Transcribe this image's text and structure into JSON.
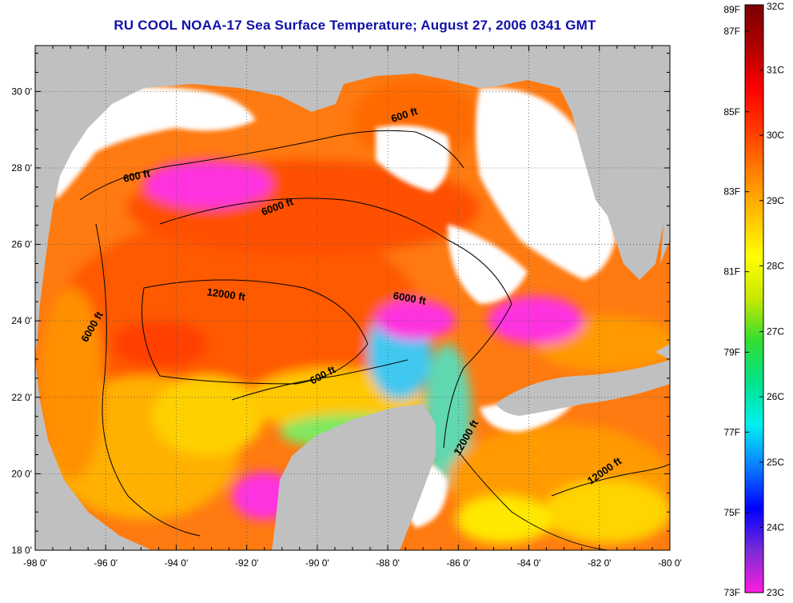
{
  "title": "RU COOL  NOAA-17  Sea Surface Temperature;  August 27, 2006 0341 GMT",
  "axes": {
    "x_ticks": [
      {
        "lon": -98,
        "label": "-98 0'"
      },
      {
        "lon": -96,
        "label": "-96 0'"
      },
      {
        "lon": -94,
        "label": "-94 0'"
      },
      {
        "lon": -92,
        "label": "-92 0'"
      },
      {
        "lon": -90,
        "label": "-90 0'"
      },
      {
        "lon": -88,
        "label": "-88 0'"
      },
      {
        "lon": -86,
        "label": "-86 0'"
      },
      {
        "lon": -84,
        "label": "-84 0'"
      },
      {
        "lon": -82,
        "label": "-82 0'"
      },
      {
        "lon": -80,
        "label": "-80 0'"
      }
    ],
    "y_ticks": [
      {
        "lat": 30,
        "label": "30 0'"
      },
      {
        "lat": 28,
        "label": "28 0'"
      },
      {
        "lat": 26,
        "label": "26 0'"
      },
      {
        "lat": 24,
        "label": "24 0'"
      },
      {
        "lat": 22,
        "label": "22 0'"
      },
      {
        "lat": 20,
        "label": "20 0'"
      },
      {
        "lat": 18,
        "label": "18 0'"
      }
    ],
    "lon_range": [
      -98,
      -80
    ],
    "lat_range": [
      18,
      31.2
    ],
    "grid": true
  },
  "contour_labels": [
    {
      "text": "600 ft",
      "lon": -95.1,
      "lat": 27.7,
      "rotate": -12
    },
    {
      "text": "6000 ft",
      "lon": -91.1,
      "lat": 26.9,
      "rotate": -20
    },
    {
      "text": "600 ft",
      "lon": -87.5,
      "lat": 29.3,
      "rotate": -18
    },
    {
      "text": "12000 ft",
      "lon": -92.6,
      "lat": 24.6,
      "rotate": 8
    },
    {
      "text": "6000 ft",
      "lon": -87.4,
      "lat": 24.5,
      "rotate": 10
    },
    {
      "text": "6000 ft",
      "lon": -96.3,
      "lat": 23.8,
      "rotate": -60
    },
    {
      "text": "600 ft",
      "lon": -89.8,
      "lat": 22.5,
      "rotate": -28
    },
    {
      "text": "12000 ft",
      "lon": -85.7,
      "lat": 20.9,
      "rotate": -60
    },
    {
      "text": "12000 ft",
      "lon": -81.8,
      "lat": 20.0,
      "rotate": -35
    }
  ],
  "colorbar": {
    "stops": [
      "#ff1ddf",
      "#7a2bd6",
      "#0000ff",
      "#0b7cff",
      "#00f0f0",
      "#00e38a",
      "#33dd33",
      "#c8e800",
      "#ffff00",
      "#ffc000",
      "#ff8000",
      "#ff3b00",
      "#ff0000",
      "#b00000",
      "#7a0000"
    ],
    "fahrenheit": [
      {
        "t": 0.0,
        "label": "73F"
      },
      {
        "t": 0.136,
        "label": "75F"
      },
      {
        "t": 0.273,
        "label": "77F"
      },
      {
        "t": 0.409,
        "label": "79F"
      },
      {
        "t": 0.546,
        "label": "81F"
      },
      {
        "t": 0.682,
        "label": "83F"
      },
      {
        "t": 0.818,
        "label": "85F"
      },
      {
        "t": 0.955,
        "label": "87F"
      },
      {
        "t": 1.0,
        "label": "89F"
      }
    ],
    "celsius": [
      {
        "t": 0.0,
        "label": "23C"
      },
      {
        "t": 0.111,
        "label": "24C"
      },
      {
        "t": 0.222,
        "label": "25C"
      },
      {
        "t": 0.333,
        "label": "26C"
      },
      {
        "t": 0.444,
        "label": "27C"
      },
      {
        "t": 0.556,
        "label": "28C"
      },
      {
        "t": 0.667,
        "label": "29C"
      },
      {
        "t": 0.778,
        "label": "30C"
      },
      {
        "t": 0.889,
        "label": "31C"
      },
      {
        "t": 1.0,
        "label": "32C"
      }
    ]
  },
  "colors": {
    "land": "#c0c0c0",
    "cloud": "#ffffff",
    "warm": "#ff6a00",
    "hot": "#ff4a00",
    "mid": "#ffb400",
    "cool": "#ffe300",
    "cold": "#40e0ff",
    "anomaly": "#ff30e0"
  }
}
